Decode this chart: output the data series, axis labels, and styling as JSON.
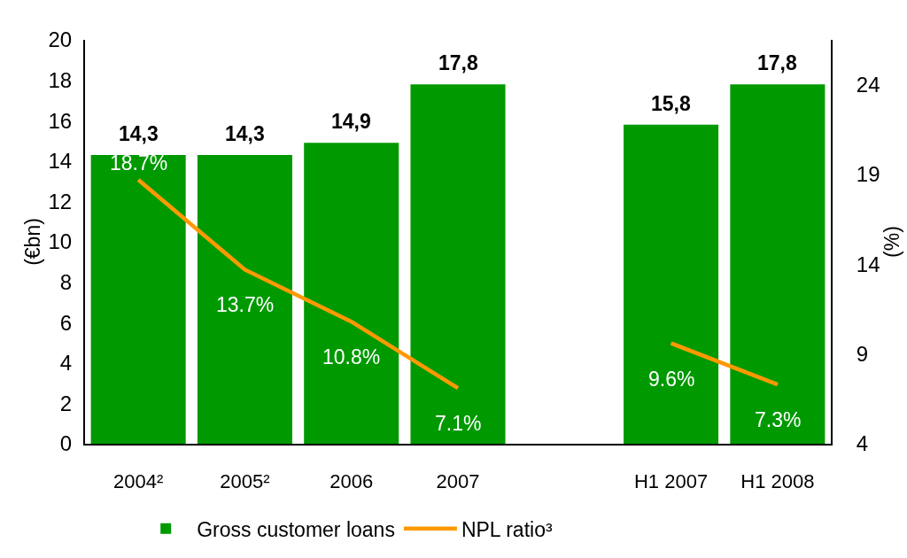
{
  "chart_data": {
    "type": "bar",
    "categories": [
      "2004²",
      "2005²",
      "2006",
      "2007",
      null,
      "H1 2007",
      "H1 2008"
    ],
    "ylabel": "(€bn)",
    "y2label": "(%)",
    "ylim": [
      0,
      20
    ],
    "yticks": [
      0,
      2,
      4,
      6,
      8,
      10,
      12,
      14,
      16,
      18,
      20
    ],
    "y2lim": [
      4,
      26.5
    ],
    "y2ticks": [
      4,
      9,
      14,
      19,
      24
    ],
    "legend": "bottom",
    "series": [
      {
        "name": "Gross customer loans",
        "color": "#009900",
        "values": [
          14.3,
          14.3,
          14.9,
          17.8,
          null,
          15.8,
          17.8
        ],
        "value_labels": [
          "14,3",
          "14,3",
          "14,9",
          "17,8",
          null,
          "15,8",
          "17,8"
        ]
      },
      {
        "name": "NPL ratio³",
        "type": "line",
        "axis": "y2",
        "color": "#ff9900",
        "values": [
          18.7,
          13.7,
          10.8,
          7.1,
          null,
          9.6,
          7.3
        ],
        "value_labels": [
          "18.7%",
          "13.7%",
          "10.8%",
          "7.1%",
          null,
          "9.6%",
          "7.3%"
        ]
      }
    ]
  }
}
